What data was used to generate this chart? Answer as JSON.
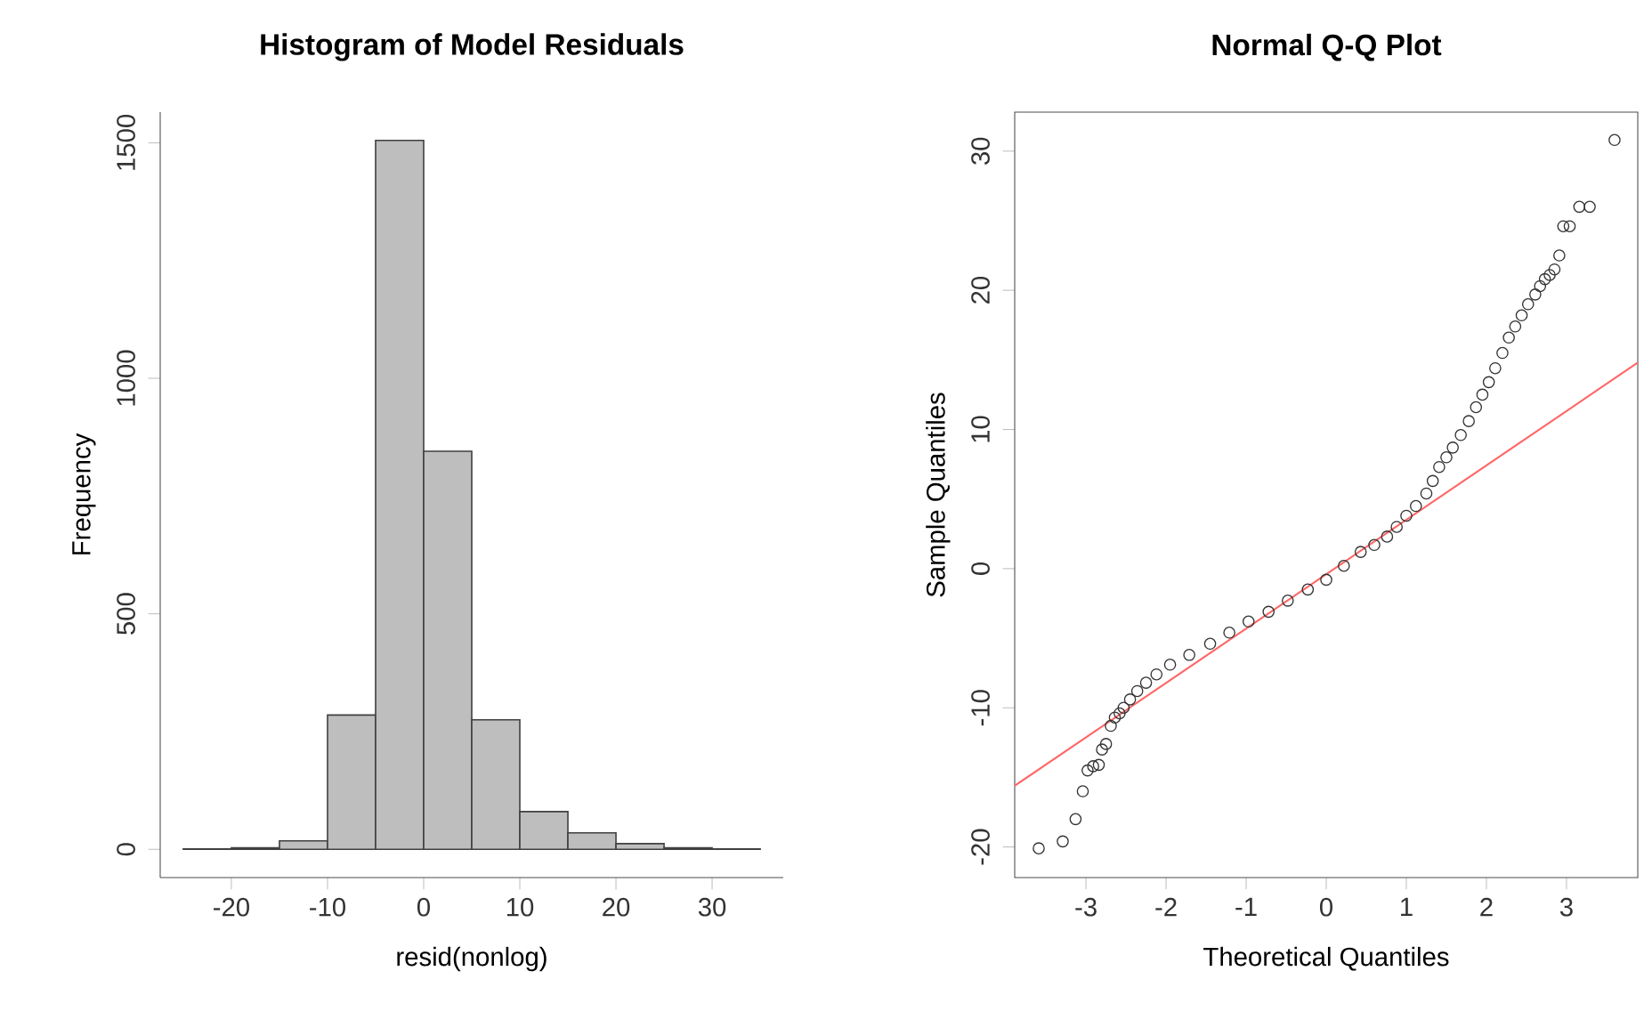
{
  "chart_data": [
    {
      "type": "histogram",
      "title": "Histogram of Model Residuals",
      "xlabel": "resid(nonlog)",
      "ylabel": "Frequency",
      "bins": [
        -25,
        -20,
        -15,
        -10,
        -5,
        0,
        5,
        10,
        15,
        20,
        25,
        30,
        35
      ],
      "values": [
        1,
        3,
        18,
        285,
        1505,
        845,
        275,
        80,
        35,
        12,
        3,
        1
      ],
      "color": "#bebebe",
      "xlim": [
        -27.4,
        37.4
      ],
      "ylim": [
        -60,
        1565
      ],
      "xticks": [
        -20,
        -10,
        0,
        10,
        20,
        30
      ],
      "yticks": [
        0,
        500,
        1000,
        1500
      ]
    },
    {
      "type": "scatter",
      "title": "Normal Q-Q Plot",
      "xlabel": "Theoretical Quantiles",
      "ylabel": "Sample Quantiles",
      "xlim": [
        -3.89,
        3.89
      ],
      "ylim": [
        -22.2,
        32.8
      ],
      "xticks": [
        -3,
        -2,
        -1,
        0,
        1,
        2,
        3
      ],
      "yticks": [
        -20,
        -10,
        0,
        10,
        20,
        30
      ],
      "series": [
        {
          "type": "scatter",
          "color": "#333333",
          "marker": "circle",
          "x": [
            -3.59,
            -3.29,
            -3.13,
            -3.04,
            -2.98,
            -2.91,
            -2.84,
            -2.8,
            -2.75,
            -2.69,
            -2.64,
            -2.58,
            -2.53,
            -2.45,
            -2.36,
            -2.25,
            -2.12,
            -1.95,
            -1.71,
            -1.45,
            -1.21,
            -0.97,
            -0.72,
            -0.48,
            -0.23,
            0.0,
            0.22,
            0.43,
            0.6,
            0.76,
            0.88,
            1.0,
            1.12,
            1.25,
            1.33,
            1.41,
            1.5,
            1.58,
            1.68,
            1.78,
            1.87,
            1.95,
            2.03,
            2.11,
            2.2,
            2.28,
            2.36,
            2.44,
            2.52,
            2.61,
            2.67,
            2.73,
            2.79,
            2.85,
            2.91,
            2.96,
            3.04,
            3.16,
            3.29,
            3.6
          ],
          "values": [
            -20.1,
            -19.6,
            -18.0,
            -16.0,
            -14.5,
            -14.2,
            -14.1,
            -13.0,
            -12.6,
            -11.3,
            -10.7,
            -10.4,
            -10.0,
            -9.4,
            -8.8,
            -8.2,
            -7.6,
            -6.9,
            -6.2,
            -5.4,
            -4.6,
            -3.8,
            -3.1,
            -2.3,
            -1.5,
            -0.8,
            0.2,
            1.2,
            1.7,
            2.3,
            3.0,
            3.8,
            4.5,
            5.4,
            6.3,
            7.3,
            8.0,
            8.7,
            9.6,
            10.6,
            11.6,
            12.5,
            13.4,
            14.4,
            15.5,
            16.6,
            17.4,
            18.2,
            19.0,
            19.7,
            20.3,
            20.8,
            21.1,
            21.5,
            22.5,
            24.6,
            24.6,
            26.0,
            26.0,
            30.8
          ]
        },
        {
          "type": "line",
          "color": "#ff6666",
          "marker": "none",
          "x": [
            -3.89,
            3.89
          ],
          "values": [
            -15.6,
            14.8
          ]
        }
      ]
    }
  ]
}
